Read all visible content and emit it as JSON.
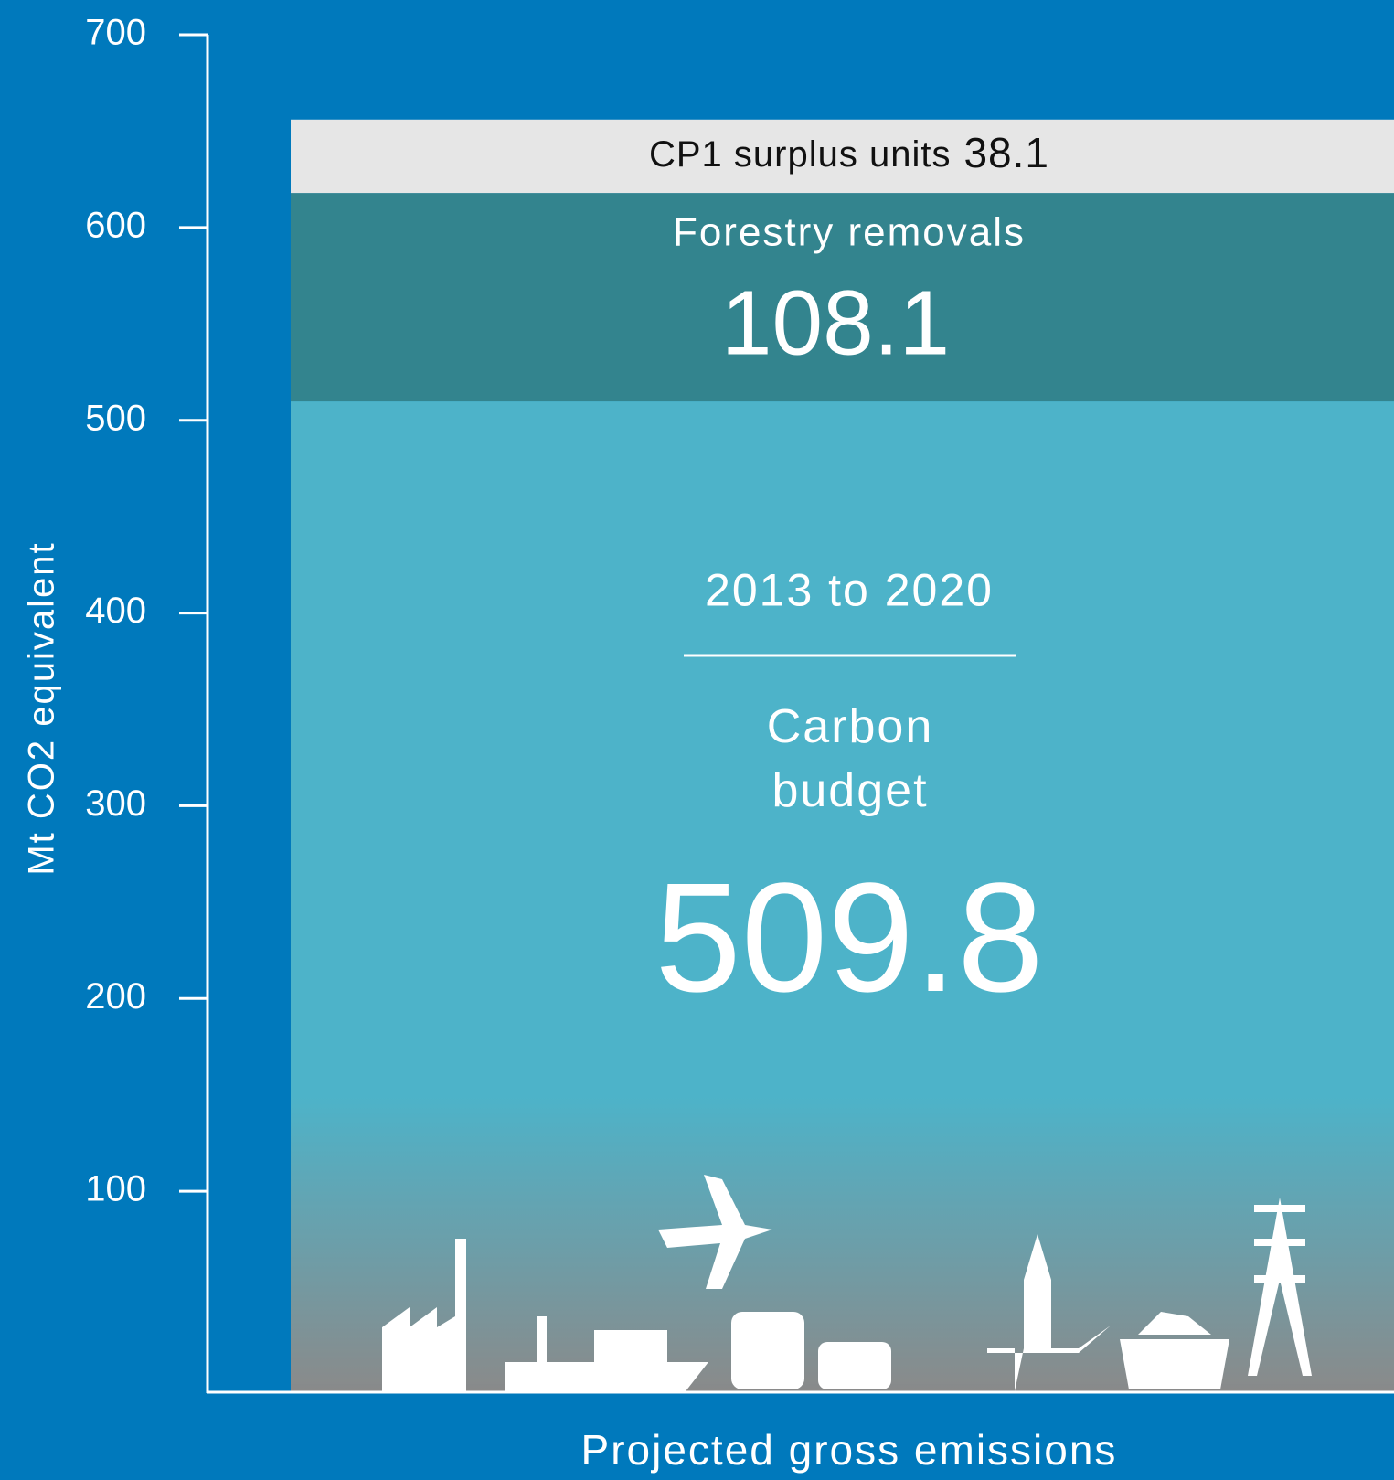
{
  "chart_data": {
    "type": "stacked_bar",
    "categories": [
      "Projected gross emissions"
    ],
    "ylabel": "Mt CO2 equivalent",
    "annotation": "2013 to 2020",
    "series": [
      {
        "name": "Carbon budget",
        "color": "#4db3c9",
        "values": [
          509.8
        ]
      },
      {
        "name": "Forestry removals",
        "color": "#33848e",
        "values": [
          108.1
        ]
      },
      {
        "name": "CP1 surplus units",
        "color": "#e6e6e6",
        "values": [
          38.1
        ]
      }
    ],
    "ylim": [
      0,
      700
    ],
    "yticks": [
      100,
      200,
      300,
      400,
      500,
      600,
      700
    ]
  }
}
